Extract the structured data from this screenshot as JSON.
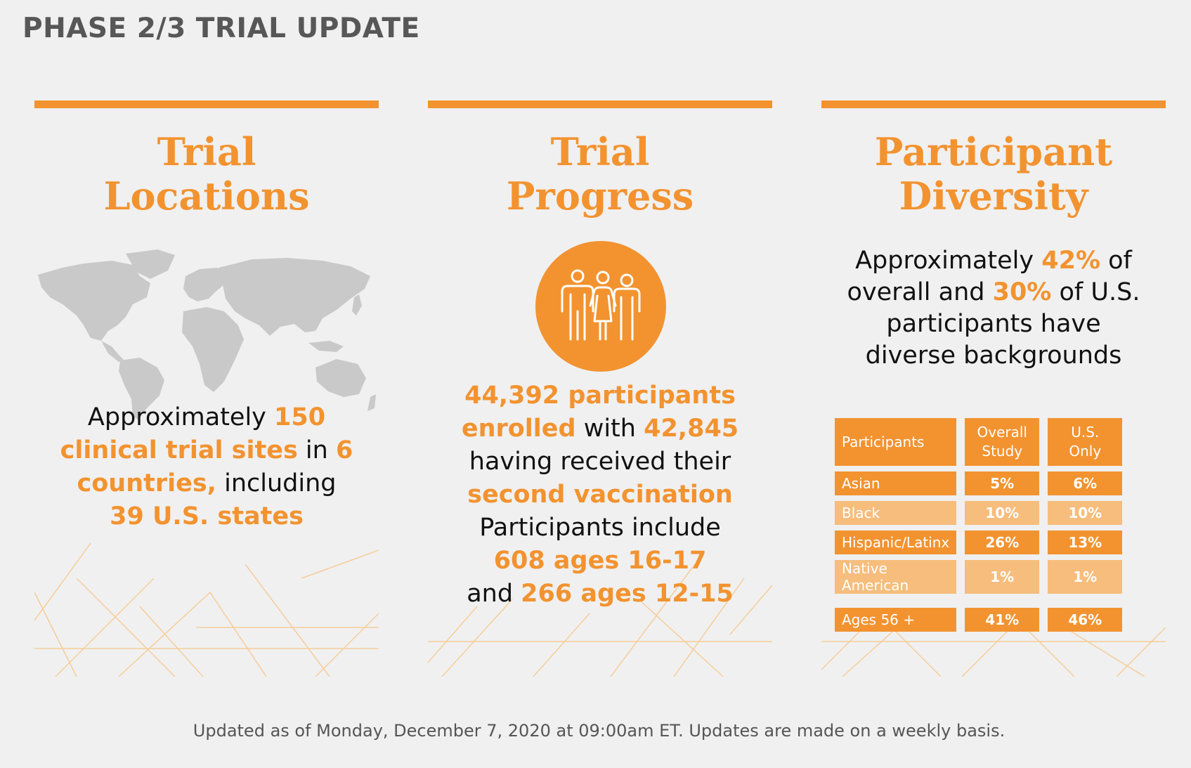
{
  "page_title": "PHASE 2/3 TRIAL UPDATE",
  "colors": {
    "accent": "#f29330",
    "accent_light": "#f6bd7c",
    "map": "#c9c9c9",
    "title": "#575757"
  },
  "locations": {
    "heading_line1": "Trial",
    "heading_line2": "Locations",
    "t1": "Approximately ",
    "t2": "150",
    "t3": "clinical trial sites",
    "t4": " in ",
    "t5": "6",
    "t6": "countries,",
    "t7": " including",
    "t8": "39 U.S. states",
    "map_icon": "world-map-icon"
  },
  "progress": {
    "heading_line1": "Trial",
    "heading_line2": "Progress",
    "icon": "people-group-icon",
    "t1": "44,392 participants",
    "t2": "enrolled",
    "t3": " with ",
    "t4": "42,845",
    "t5": "having received their",
    "t6": "second vaccination",
    "t7": "Participants include",
    "t8": "608 ages 16-17",
    "t9": "and ",
    "t10": "266 ages 12-15"
  },
  "diversity": {
    "heading_line1": "Participant",
    "heading_line2": "Diversity",
    "t1": "Approximately ",
    "t2": "42%",
    "t3": " of",
    "t4": "overall and ",
    "t5": "30%",
    "t6": " of U.S.",
    "t7": "participants have",
    "t8": "diverse backgrounds",
    "table": {
      "h1": "Participants",
      "h2a": "Overall",
      "h2b": "Study",
      "h3a": "U.S.",
      "h3b": "Only",
      "rows": [
        {
          "label": "Asian",
          "overall": "5%",
          "us": "6%"
        },
        {
          "label": "Black",
          "overall": "10%",
          "us": "10%"
        },
        {
          "label": "Hispanic/Latinx",
          "overall": "26%",
          "us": "13%"
        },
        {
          "label": "Native American",
          "overall": "1%",
          "us": "1%"
        },
        {
          "label": "Ages 56 +",
          "overall": "41%",
          "us": "46%"
        }
      ]
    }
  },
  "footer": "Updated as of Monday, December 7, 2020 at 09:00am ET. Updates are made on a weekly basis."
}
